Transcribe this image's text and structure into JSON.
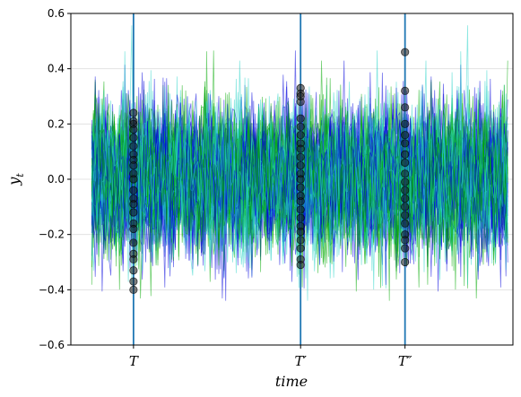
{
  "chart_data": {
    "type": "line",
    "title": "",
    "xlabel": "time",
    "ylabel": "y_t",
    "ylim": [
      -0.6,
      0.6
    ],
    "yticks": [
      -0.6,
      -0.4,
      -0.2,
      0.0,
      0.2,
      0.4,
      0.6
    ],
    "ytick_labels": [
      "−0.6",
      "−0.4",
      "−0.2",
      "0.0",
      "0.2",
      "0.4",
      "0.6"
    ],
    "xlim": [
      -12,
      242
    ],
    "n_steps": 240,
    "n_paths_per_color": 20,
    "grid": "horizontal",
    "series_colors": [
      "#0000dd",
      "#00aa00",
      "#2ad4c8"
    ],
    "series_alpha": 0.55,
    "noise_std": 0.13,
    "markers": [
      {
        "x": 24,
        "label": "T",
        "line_color": "#1f77b4",
        "values": [
          0.24,
          0.21,
          0.2,
          0.18,
          0.15,
          0.12,
          0.09,
          0.07,
          0.05,
          0.02,
          0.0,
          -0.04,
          -0.07,
          -0.09,
          -0.12,
          -0.16,
          -0.18,
          -0.23,
          -0.27,
          -0.29,
          -0.33,
          -0.37,
          -0.4
        ]
      },
      {
        "x": 120,
        "label": "T′",
        "line_color": "#1f77b4",
        "values": [
          0.33,
          0.31,
          0.3,
          0.28,
          0.22,
          0.19,
          0.16,
          0.13,
          0.11,
          0.08,
          0.05,
          0.02,
          0.0,
          -0.03,
          -0.06,
          -0.08,
          -0.11,
          -0.14,
          -0.17,
          -0.19,
          -0.22,
          -0.25,
          -0.29,
          -0.31
        ]
      },
      {
        "x": 180,
        "label": "T″",
        "line_color": "#1f77b4",
        "values": [
          0.46,
          0.32,
          0.26,
          0.2,
          0.16,
          0.13,
          0.09,
          0.06,
          0.02,
          -0.01,
          -0.04,
          -0.07,
          -0.1,
          -0.13,
          -0.16,
          -0.2,
          -0.22,
          -0.25,
          -0.3
        ]
      }
    ]
  }
}
